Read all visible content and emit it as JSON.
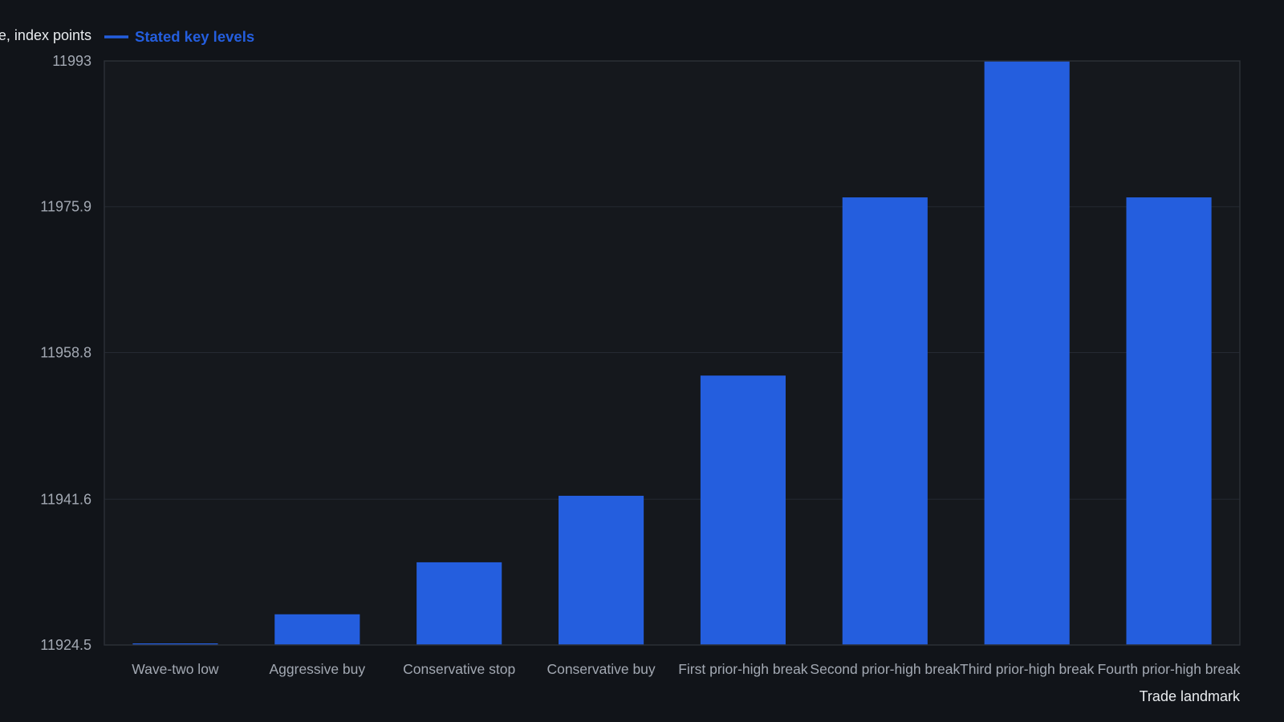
{
  "chart_data": {
    "type": "bar",
    "title": "",
    "ylabel": "Price, index points",
    "xlabel": "Trade landmark",
    "legend": {
      "position": "top-left",
      "entries": [
        {
          "name": "Stated key levels",
          "color": "#245ede"
        }
      ]
    },
    "categories": [
      "Wave-two low",
      "Aggressive buy",
      "Conservative stop",
      "Conservative buy",
      "First prior-high break",
      "Second prior-high break",
      "Third prior-high break",
      "Fourth prior-high break"
    ],
    "series": [
      {
        "name": "Stated key levels",
        "color": "#245ede",
        "values": [
          11924.6,
          11928.1,
          11934.2,
          11942.0,
          11956.1,
          11977.0,
          11993.0,
          11977.0
        ]
      }
    ],
    "ylim": [
      11924.5,
      11993
    ],
    "yticks": [
      "11924.5",
      "11941.6",
      "11958.8",
      "11975.9",
      "11993"
    ],
    "grid": true
  }
}
